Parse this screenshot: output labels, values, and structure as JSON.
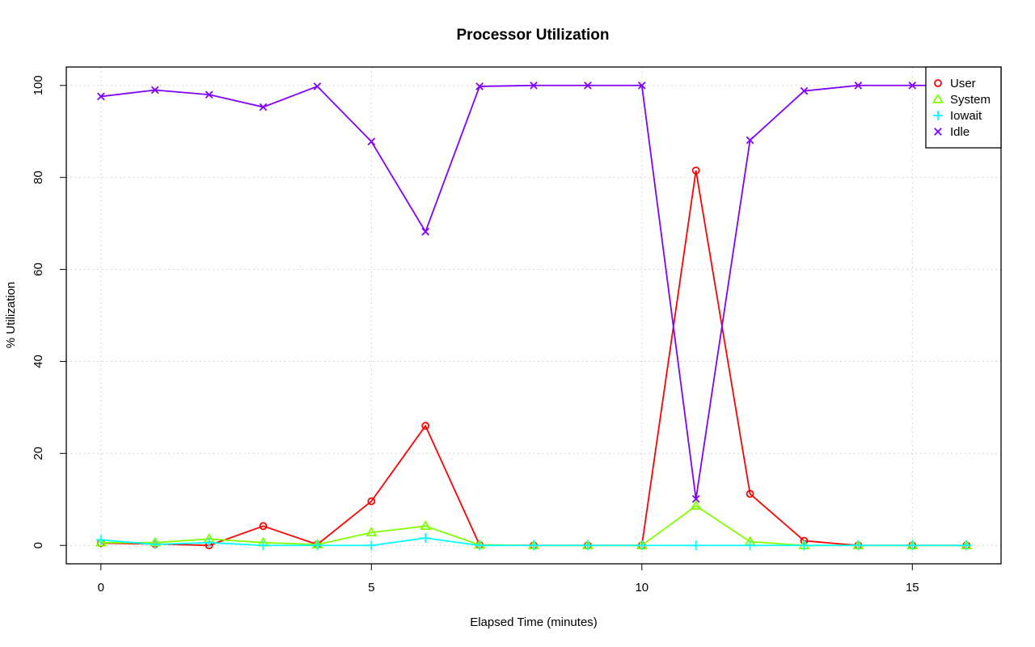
{
  "chart_data": {
    "type": "line",
    "title": "Processor Utilization",
    "xlabel": "Elapsed Time (minutes)",
    "ylabel": "% Utilization",
    "xlim": [
      -0.64,
      16.64
    ],
    "ylim": [
      -4,
      104
    ],
    "xticks": [
      0,
      5,
      10,
      15
    ],
    "yticks": [
      0,
      20,
      40,
      60,
      80,
      100
    ],
    "grid": true,
    "legend_position": "top-right",
    "x": [
      0,
      1,
      2,
      3,
      4,
      5,
      6,
      7,
      8,
      9,
      10,
      11,
      12,
      13,
      14,
      15,
      16
    ],
    "series": [
      {
        "name": "User",
        "color": "#ff0000",
        "marker": "circle",
        "values": [
          0.5,
          0.3,
          0,
          4.2,
          0.2,
          9.6,
          26,
          0.1,
          0,
          0,
          0,
          81.5,
          11.2,
          1,
          0,
          0,
          0
        ]
      },
      {
        "name": "System",
        "color": "#80ff00",
        "marker": "triangle",
        "values": [
          0.6,
          0.6,
          1.4,
          0.6,
          0.2,
          2.8,
          4.2,
          0.1,
          0,
          0,
          0,
          8.6,
          0.8,
          0,
          0,
          0,
          0
        ]
      },
      {
        "name": "Iowait",
        "color": "#00ffff",
        "marker": "plus",
        "values": [
          1.2,
          0.2,
          0.6,
          0,
          0,
          0,
          1.6,
          0,
          0,
          0,
          0,
          0,
          0,
          0,
          0,
          0,
          0
        ]
      },
      {
        "name": "Idle",
        "color": "#8000ff",
        "marker": "cross",
        "values": [
          97.6,
          99,
          98,
          95.3,
          99.8,
          87.8,
          68.2,
          99.8,
          100,
          100,
          100,
          10.1,
          88.1,
          98.8,
          100,
          100,
          100
        ]
      }
    ]
  }
}
